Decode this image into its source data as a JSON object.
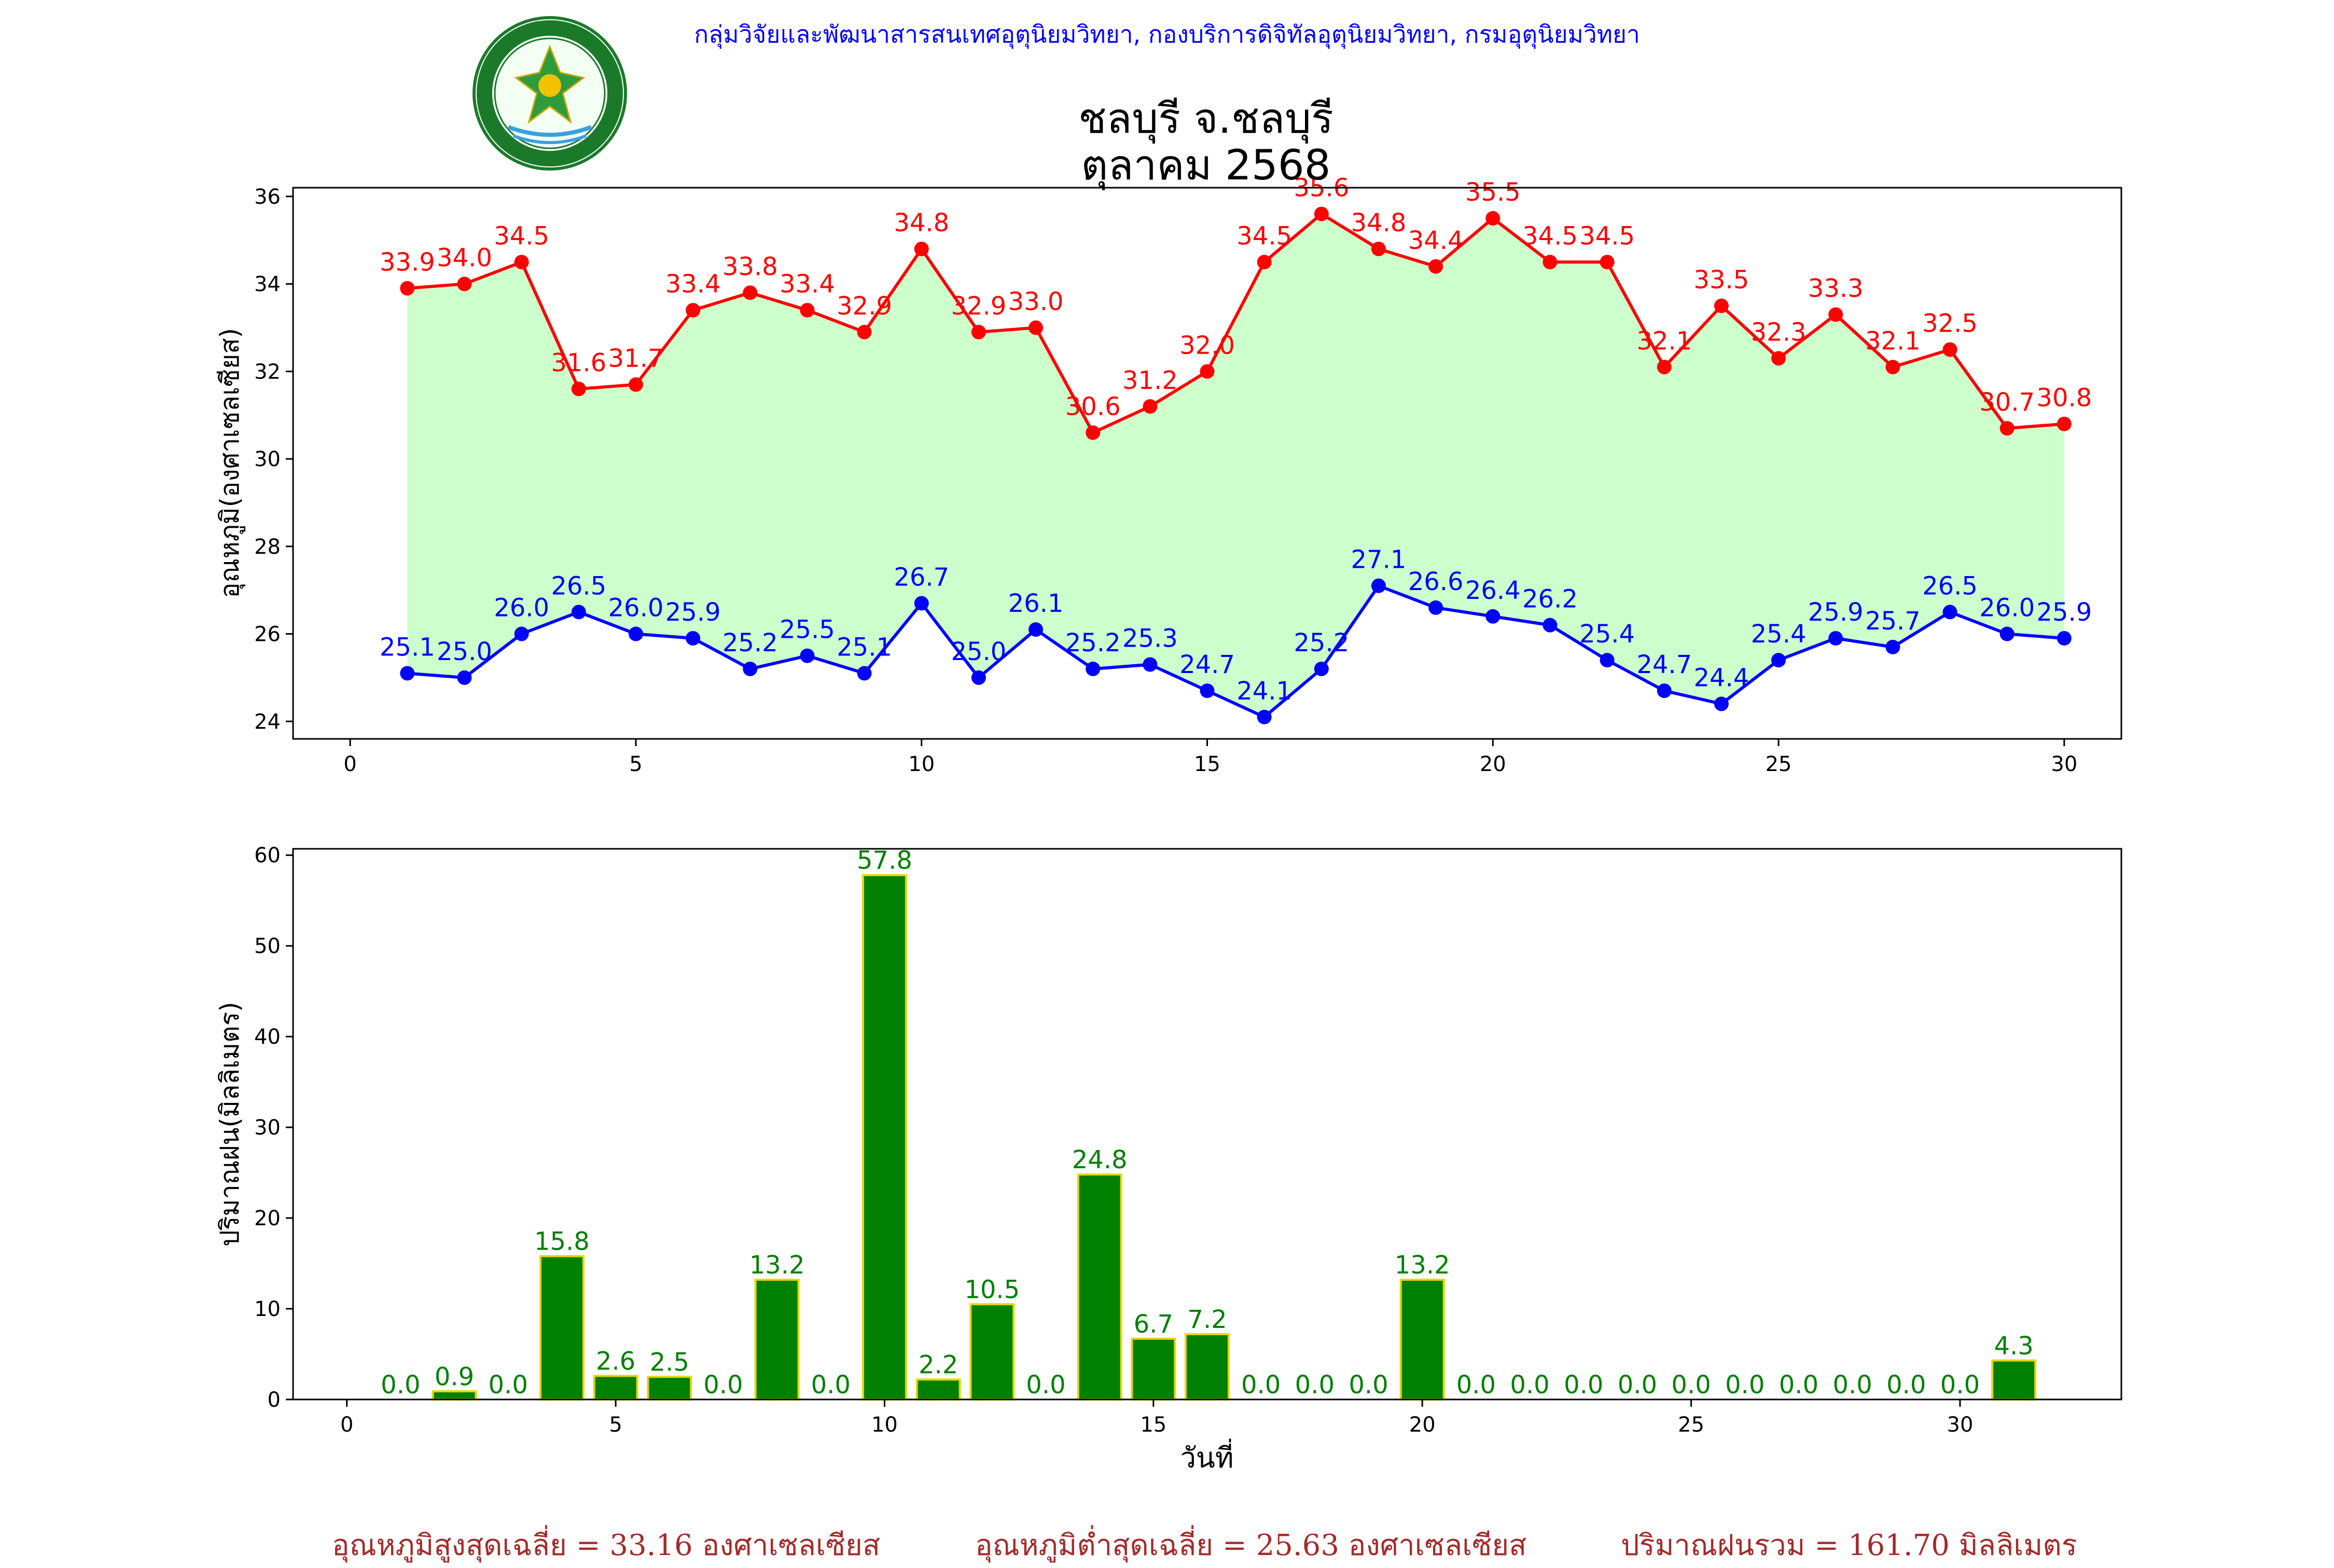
{
  "header": {
    "agency": "กลุ่มวิจัยและพัฒนาสารสนเทศอุตุนิยมวิทยา, กองบริการดิจิทัลอุตุนิยมวิทยา, กรมอุตุนิยมวิทยา",
    "logo_text": "กรมอุตุนิยมวิทยา METEOROLOGICAL DEPARTMENT",
    "logo_icon": "meteorological-department-seal"
  },
  "title": {
    "station": "ชลบุรี จ.ชลบุรี",
    "period": "ตุลาคม 2568"
  },
  "colors": {
    "max_temp": "#ff0000",
    "min_temp": "#0000ff",
    "temp_fill": "#ccffcc",
    "rain_bar": "#008000",
    "rain_edge": "#e6d800",
    "header_text": "#0000ff",
    "footer_text": "#a52a2a"
  },
  "chart_data": [
    {
      "type": "line",
      "ylabel": "อุณหภูมิ(องศาเซลเซียส)",
      "xlabel": "",
      "xlim": [
        -1,
        31
      ],
      "ylim": [
        23.6,
        36.2
      ],
      "xticks": [
        0,
        5,
        10,
        15,
        20,
        25,
        30
      ],
      "yticks": [
        24,
        26,
        28,
        30,
        32,
        34,
        36
      ],
      "x": [
        1,
        2,
        3,
        4,
        5,
        6,
        7,
        8,
        9,
        10,
        11,
        12,
        13,
        14,
        15,
        16,
        17,
        18,
        19,
        20,
        21,
        22,
        23,
        24,
        25,
        26,
        27,
        28,
        29,
        30
      ],
      "series": [
        {
          "key": "max",
          "values": [
            33.9,
            34.0,
            34.5,
            31.6,
            31.7,
            33.4,
            33.8,
            33.4,
            32.9,
            34.8,
            32.9,
            33.0,
            30.6,
            31.2,
            32.0,
            34.5,
            35.6,
            34.8,
            34.4,
            35.5,
            34.5,
            34.5,
            32.1,
            33.5,
            32.3,
            33.3,
            32.1,
            32.5,
            30.7,
            30.8
          ]
        },
        {
          "key": "min",
          "values": [
            25.1,
            25.0,
            26.0,
            26.5,
            26.0,
            25.9,
            25.2,
            25.5,
            25.1,
            26.7,
            25.0,
            26.1,
            25.2,
            25.3,
            24.7,
            24.1,
            25.2,
            27.1,
            26.6,
            26.4,
            26.2,
            25.4,
            24.7,
            24.4,
            25.4,
            25.9,
            25.7,
            26.5,
            26.0,
            25.9
          ]
        }
      ],
      "grid": false,
      "fill_between": true
    },
    {
      "type": "bar",
      "ylabel": "ปริมาณฝน(มิลลิเมตร)",
      "xlabel": "วันที่",
      "xlim": [
        -1,
        33
      ],
      "ylim": [
        0,
        60.7
      ],
      "xticks": [
        0,
        5,
        10,
        15,
        20,
        25,
        30
      ],
      "yticks": [
        0,
        10,
        20,
        30,
        40,
        50,
        60
      ],
      "x": [
        1,
        2,
        3,
        4,
        5,
        6,
        7,
        8,
        9,
        10,
        11,
        12,
        13,
        14,
        15,
        16,
        17,
        18,
        19,
        20,
        21,
        22,
        23,
        24,
        25,
        26,
        27,
        28,
        29,
        30,
        31
      ],
      "values": [
        0.0,
        0.9,
        0.0,
        15.8,
        2.6,
        2.5,
        0.0,
        13.2,
        0.0,
        57.8,
        2.2,
        10.5,
        0.0,
        24.8,
        6.7,
        7.2,
        0.0,
        0.0,
        0.0,
        13.2,
        0.0,
        0.0,
        0.0,
        0.0,
        0.0,
        0.0,
        0.0,
        0.0,
        0.0,
        0.0,
        4.3
      ],
      "grid": false
    }
  ],
  "footer": {
    "avg_max": "อุณหภูมิสูงสุดเฉลี่ย = 33.16 องศาเซลเซียส",
    "avg_min": "อุณหภูมิต่ำสุดเฉลี่ย = 25.63 องศาเซลเซียส",
    "total_rain": "ปริมาณฝนรวม = 161.70 มิลลิเมตร"
  }
}
